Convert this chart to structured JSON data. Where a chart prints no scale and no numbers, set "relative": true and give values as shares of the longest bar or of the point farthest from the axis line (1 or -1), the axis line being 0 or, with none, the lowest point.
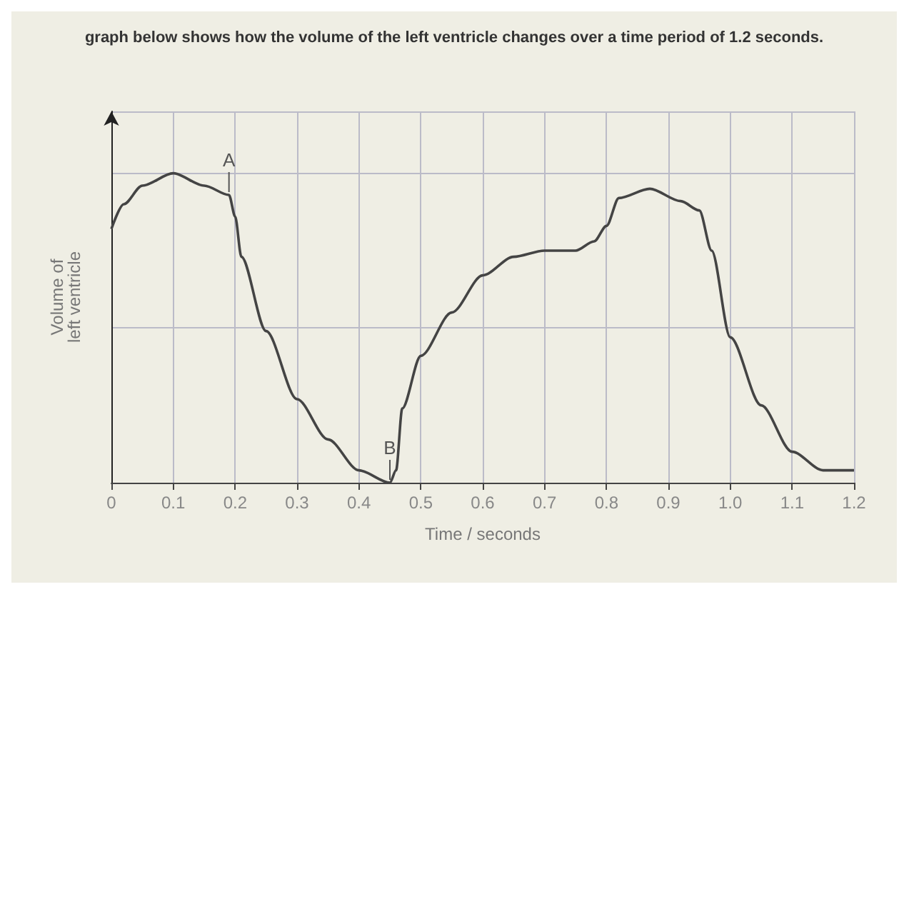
{
  "chart_data": {
    "type": "line",
    "title": "graph below shows how the volume of the left ventricle changes over a time period of 1.2 seconds.",
    "xlabel": "Time / seconds",
    "ylabel": "Volume of\nleft ventricle",
    "relative": true,
    "xlim": [
      0,
      1.2
    ],
    "xticks": [
      0,
      0.1,
      0.2,
      0.3,
      0.4,
      0.5,
      0.6,
      0.7,
      0.8,
      0.9,
      {
        "value": 1,
        "label": "1.0"
      },
      1.1,
      1.2
    ],
    "grid": true,
    "marker": "none",
    "line_style": "solid",
    "series": [
      {
        "color": "#444444",
        "x": [
          0,
          0.02,
          0.05,
          0.1,
          0.15,
          0.19,
          0.2,
          0.21,
          0.25,
          0.3,
          0.35,
          0.4,
          0.45,
          0.46,
          0.47,
          0.5,
          0.55,
          0.6,
          0.65,
          0.7,
          0.75,
          0.78,
          0.8,
          0.82,
          0.87,
          0.92,
          0.95,
          0.97,
          1.0,
          1.05,
          1.1,
          1.15,
          1.2
        ],
        "values": [
          0.82,
          0.9,
          0.96,
          1,
          0.96,
          0.93,
          0.86,
          0.73,
          0.49,
          0.27,
          0.14,
          0.04,
          0,
          0.04,
          0.24,
          0.41,
          0.55,
          0.67,
          0.73,
          0.75,
          0.75,
          0.78,
          0.83,
          0.92,
          0.95,
          0.91,
          0.88,
          0.75,
          0.47,
          0.25,
          0.1,
          0.04,
          0.04
        ]
      }
    ],
    "annotations": [
      {
        "text": "A",
        "x": 0.19,
        "y": 0.93
      },
      {
        "text": "B",
        "x": 0.45,
        "y": 0
      }
    ]
  }
}
